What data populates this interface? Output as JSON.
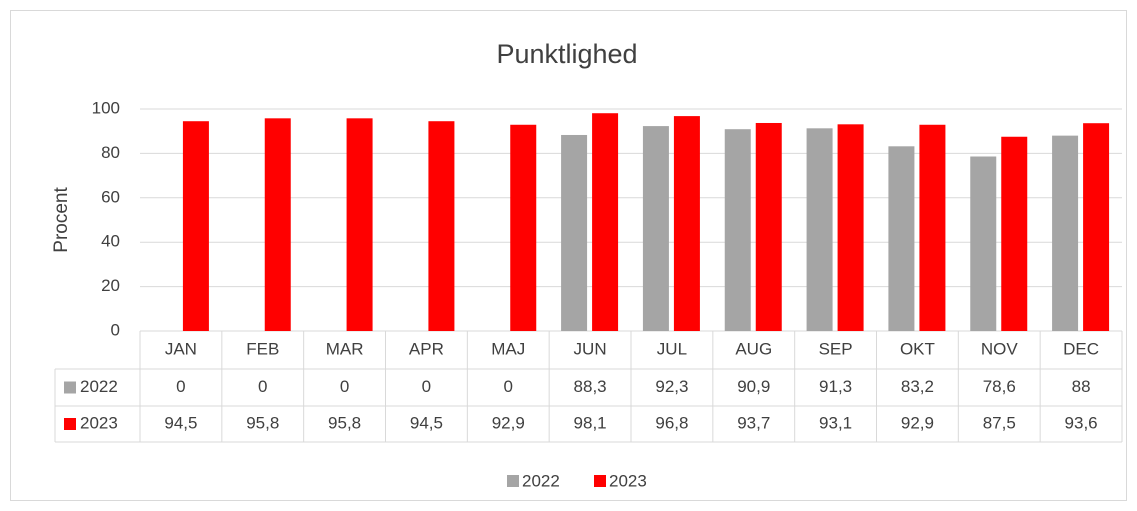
{
  "chart_data": {
    "type": "bar",
    "title": "Punktlighed",
    "y_label": "Procent",
    "categories": [
      "JAN",
      "FEB",
      "MAR",
      "APR",
      "MAJ",
      "JUN",
      "JUL",
      "AUG",
      "SEP",
      "OKT",
      "NOV",
      "DEC"
    ],
    "series": [
      {
        "name": "2022",
        "color": "#a5a5a5",
        "values": [
          0,
          0,
          0,
          0,
          0,
          88.3,
          92.3,
          90.9,
          91.3,
          83.2,
          78.6,
          88
        ],
        "value_labels": [
          "0",
          "0",
          "0",
          "0",
          "0",
          "88,3",
          "92,3",
          "90,9",
          "91,3",
          "83,2",
          "78,6",
          "88"
        ]
      },
      {
        "name": "2023",
        "color": "#ff0000",
        "values": [
          94.5,
          95.8,
          95.8,
          94.5,
          92.9,
          98.1,
          96.8,
          93.7,
          93.1,
          92.9,
          87.5,
          93.6
        ],
        "value_labels": [
          "94,5",
          "95,8",
          "95,8",
          "94,5",
          "92,9",
          "98,1",
          "96,8",
          "93,7",
          "93,1",
          "92,9",
          "87,5",
          "93,6"
        ]
      }
    ],
    "ylim": [
      0,
      100
    ],
    "yticks": [
      0,
      20,
      40,
      60,
      80,
      100
    ],
    "grid": true,
    "legend": "bottom"
  }
}
